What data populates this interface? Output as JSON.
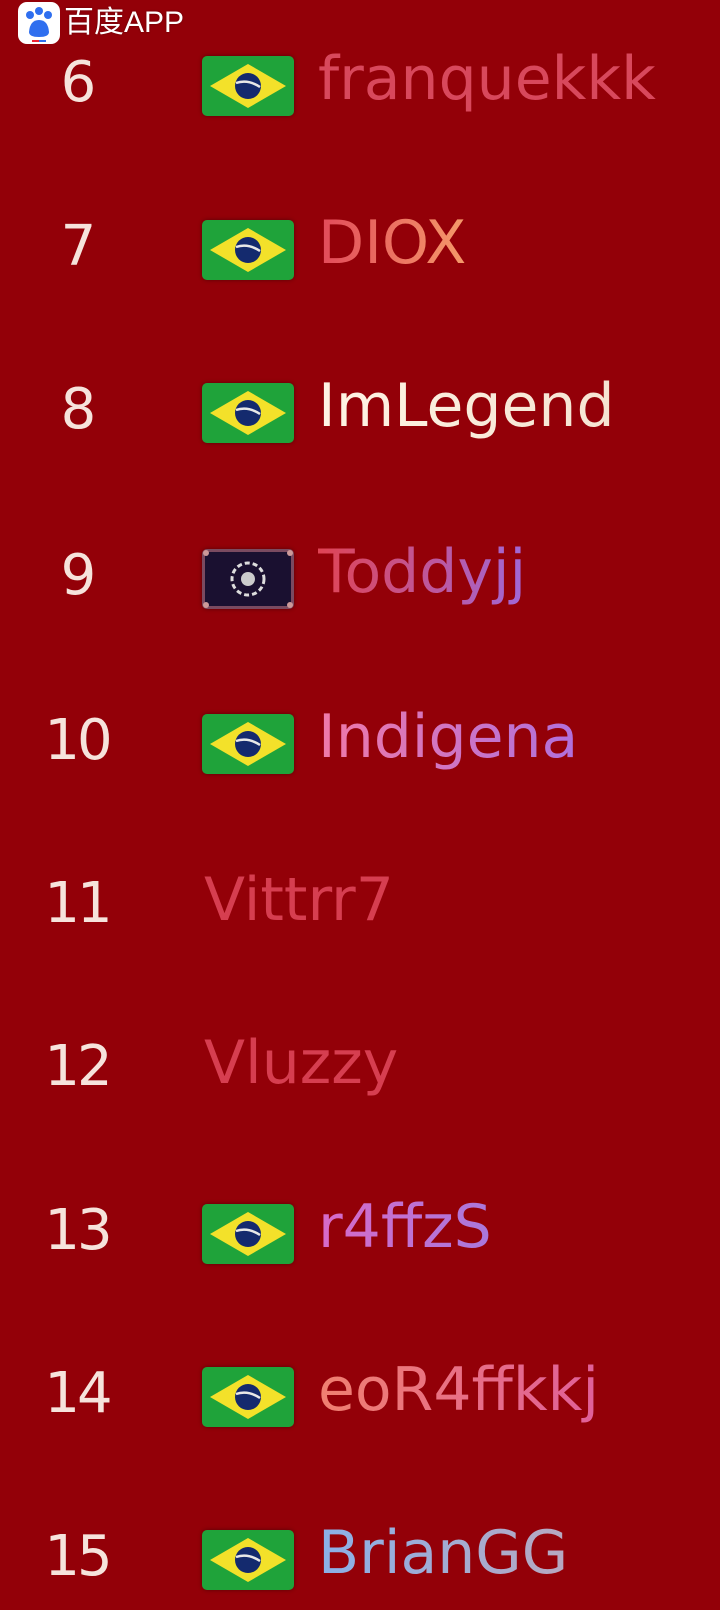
{
  "watermark": {
    "text": "百度APP",
    "icon": "baidu-paw-icon"
  },
  "leaderboard": [
    {
      "rank": "6",
      "name": "franquekkk",
      "flag": "brazil",
      "colors": [
        "#d8485c",
        "#d8485c"
      ]
    },
    {
      "rank": "7",
      "name": "DIOX",
      "flag": "brazil",
      "colors": [
        "#e24a5a",
        "#f59a6a"
      ]
    },
    {
      "rank": "8",
      "name": "ImLegend",
      "flag": "brazil",
      "colors": [
        "#fff3e4",
        "#f5e4d2"
      ]
    },
    {
      "rank": "9",
      "name": "Toddyjj",
      "flag": "dragon-emblem",
      "colors": [
        "#e04454",
        "#a068d8"
      ]
    },
    {
      "rank": "10",
      "name": "Indigena",
      "flag": "brazil",
      "colors": [
        "#f07aa8",
        "#b070dc"
      ]
    },
    {
      "rank": "11",
      "name": "Vittrr7",
      "flag": "",
      "colors": [
        "#d63e50",
        "#d63e50"
      ]
    },
    {
      "rank": "12",
      "name": "Vluzzy",
      "flag": "",
      "colors": [
        "#d63e50",
        "#d63e50"
      ]
    },
    {
      "rank": "13",
      "name": "r4ffzS",
      "flag": "brazil",
      "colors": [
        "#d86ac8",
        "#a978dc"
      ]
    },
    {
      "rank": "14",
      "name": "eoR4ffkkj",
      "flag": "brazil",
      "colors": [
        "#f08070",
        "#e0609a"
      ]
    },
    {
      "rank": "15",
      "name": "BrianGG",
      "flag": "brazil",
      "colors": [
        "#8ab0e8",
        "#b8a8c0"
      ]
    }
  ]
}
